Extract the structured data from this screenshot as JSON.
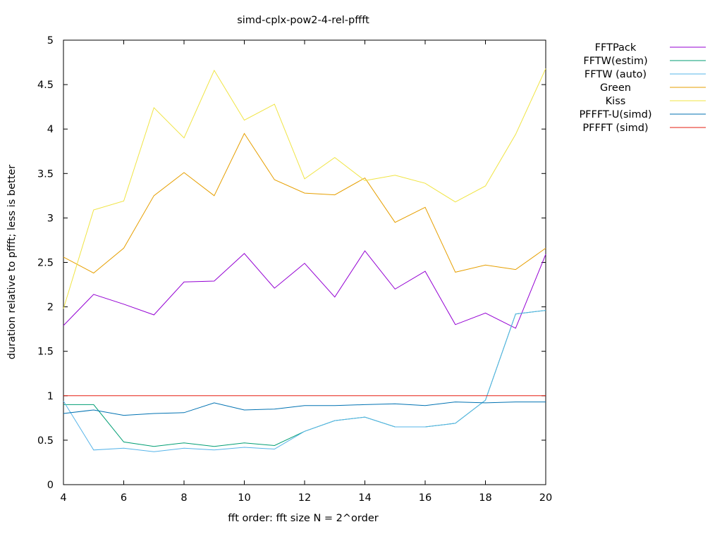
{
  "chart_data": {
    "type": "line",
    "title": "simd-cplx-pow2-4-rel-pffft",
    "xlabel": "fft order: fft size N = 2^order",
    "ylabel": "duration relative to pffft; less is better",
    "xlim": [
      4,
      20
    ],
    "ylim": [
      0,
      5
    ],
    "xticks": [
      4,
      6,
      8,
      10,
      12,
      14,
      16,
      18,
      20
    ],
    "yticks": [
      0,
      0.5,
      1,
      1.5,
      2,
      2.5,
      3,
      3.5,
      4,
      4.5,
      5
    ],
    "xtick_labels": [
      "4",
      "6",
      "8",
      "10",
      "12",
      "14",
      "16",
      "18",
      "20"
    ],
    "ytick_labels": [
      "0",
      "0.5",
      "1",
      "1.5",
      "2",
      "2.5",
      "3",
      "3.5",
      "4",
      "4.5",
      "5"
    ],
    "grid": false,
    "legend_position": "top-right outside",
    "x": [
      4,
      5,
      6,
      7,
      8,
      9,
      10,
      11,
      12,
      13,
      14,
      15,
      16,
      17,
      18,
      19,
      20
    ],
    "series": [
      {
        "name": "FFTPack",
        "color": "#9400d3",
        "values": [
          1.79,
          2.14,
          2.03,
          1.91,
          2.28,
          2.29,
          2.6,
          2.21,
          2.49,
          2.11,
          2.63,
          2.2,
          2.4,
          1.8,
          1.93,
          1.76,
          2.59
        ]
      },
      {
        "name": "FFTW(estim)",
        "color": "#009e73",
        "values": [
          0.9,
          0.9,
          0.48,
          0.43,
          0.47,
          0.43,
          0.47,
          0.44,
          0.6,
          0.72,
          0.76,
          0.65,
          0.65,
          0.69,
          0.95,
          1.92,
          1.96
        ]
      },
      {
        "name": "FFTW (auto)",
        "color": "#56b4e9",
        "values": [
          0.94,
          0.39,
          0.41,
          0.37,
          0.41,
          0.39,
          0.42,
          0.4,
          0.6,
          0.72,
          0.76,
          0.65,
          0.65,
          0.69,
          0.95,
          1.92,
          1.96
        ]
      },
      {
        "name": "Green",
        "color": "#e69f00",
        "values": [
          2.56,
          2.38,
          2.66,
          3.25,
          3.51,
          3.25,
          3.95,
          3.43,
          3.28,
          3.26,
          3.45,
          2.95,
          3.12,
          2.39,
          2.47,
          2.42,
          2.66
        ]
      },
      {
        "name": "Kiss",
        "color": "#f0e442",
        "values": [
          1.98,
          3.09,
          3.19,
          4.24,
          3.9,
          4.66,
          4.1,
          4.28,
          3.44,
          3.68,
          3.42,
          3.48,
          3.39,
          3.18,
          3.36,
          3.94,
          4.68
        ]
      },
      {
        "name": "PFFFT-U(simd)",
        "color": "#0072b2",
        "values": [
          0.8,
          0.84,
          0.78,
          0.8,
          0.81,
          0.92,
          0.84,
          0.85,
          0.89,
          0.89,
          0.9,
          0.91,
          0.89,
          0.93,
          0.92,
          0.93,
          0.93
        ]
      },
      {
        "name": "PFFFT (simd)",
        "color": "#e51e10",
        "values": [
          1,
          1,
          1,
          1,
          1,
          1,
          1,
          1,
          1,
          1,
          1,
          1,
          1,
          1,
          1,
          1,
          1
        ]
      }
    ]
  }
}
